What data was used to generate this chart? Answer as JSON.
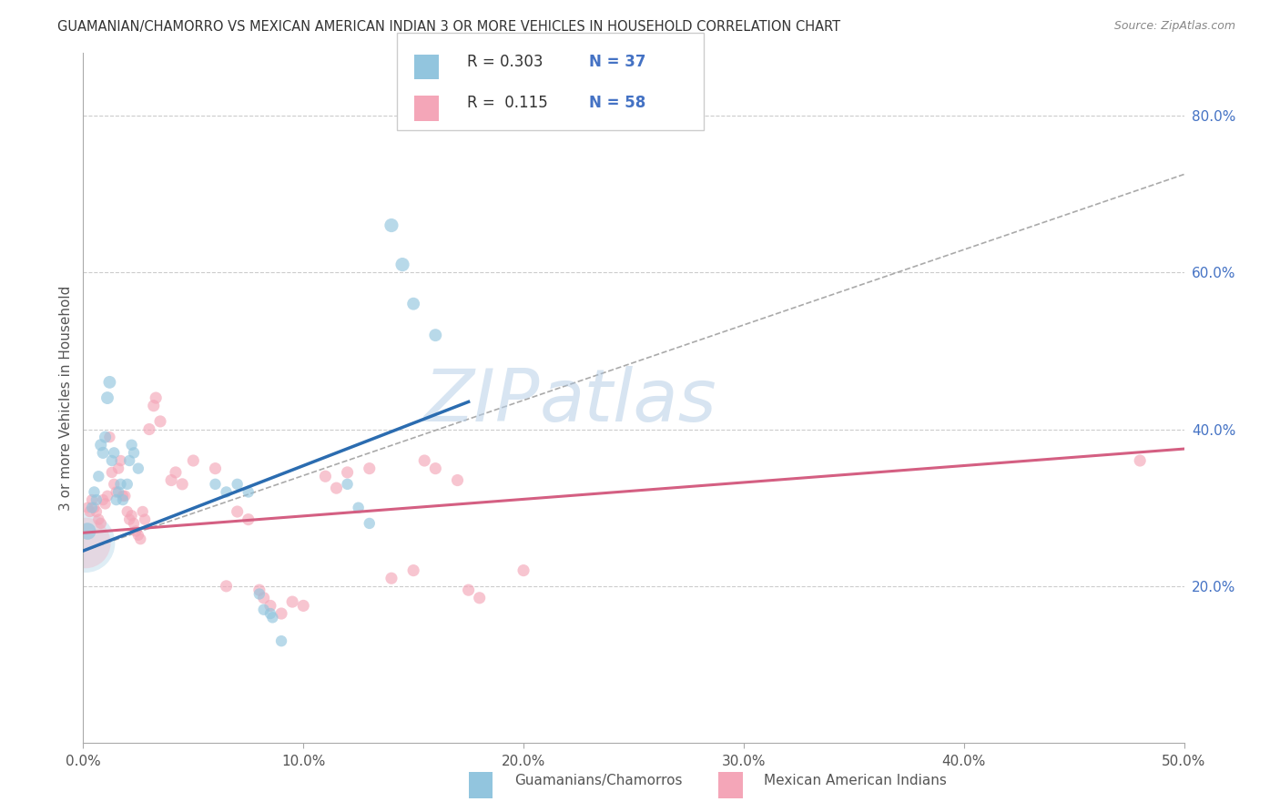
{
  "title": "GUAMANIAN/CHAMORRO VS MEXICAN AMERICAN INDIAN 3 OR MORE VEHICLES IN HOUSEHOLD CORRELATION CHART",
  "source": "Source: ZipAtlas.com",
  "ylabel": "3 or more Vehicles in Household",
  "xlim": [
    0,
    0.5
  ],
  "ylim": [
    0.0,
    0.88
  ],
  "xticks": [
    0.0,
    0.1,
    0.2,
    0.3,
    0.4,
    0.5
  ],
  "xtick_labels": [
    "0.0%",
    "10.0%",
    "20.0%",
    "30.0%",
    "40.0%",
    "50.0%"
  ],
  "yticks_right": [
    0.2,
    0.4,
    0.6,
    0.8
  ],
  "ytick_labels_right": [
    "20.0%",
    "40.0%",
    "60.0%",
    "80.0%"
  ],
  "grid_color": "#cccccc",
  "background_color": "#ffffff",
  "blue_color": "#92c5de",
  "pink_color": "#f4a6b8",
  "blue_line_color": "#2b6cb0",
  "pink_line_color": "#d45f82",
  "blue_scatter": [
    [
      0.002,
      0.27
    ],
    [
      0.004,
      0.3
    ],
    [
      0.005,
      0.32
    ],
    [
      0.006,
      0.31
    ],
    [
      0.007,
      0.34
    ],
    [
      0.008,
      0.38
    ],
    [
      0.009,
      0.37
    ],
    [
      0.01,
      0.39
    ],
    [
      0.011,
      0.44
    ],
    [
      0.012,
      0.46
    ],
    [
      0.013,
      0.36
    ],
    [
      0.014,
      0.37
    ],
    [
      0.015,
      0.31
    ],
    [
      0.016,
      0.32
    ],
    [
      0.017,
      0.33
    ],
    [
      0.018,
      0.31
    ],
    [
      0.02,
      0.33
    ],
    [
      0.021,
      0.36
    ],
    [
      0.022,
      0.38
    ],
    [
      0.023,
      0.37
    ],
    [
      0.025,
      0.35
    ],
    [
      0.06,
      0.33
    ],
    [
      0.065,
      0.32
    ],
    [
      0.07,
      0.33
    ],
    [
      0.075,
      0.32
    ],
    [
      0.08,
      0.19
    ],
    [
      0.082,
      0.17
    ],
    [
      0.085,
      0.165
    ],
    [
      0.086,
      0.16
    ],
    [
      0.09,
      0.13
    ],
    [
      0.12,
      0.33
    ],
    [
      0.125,
      0.3
    ],
    [
      0.13,
      0.28
    ],
    [
      0.14,
      0.66
    ],
    [
      0.145,
      0.61
    ],
    [
      0.15,
      0.56
    ],
    [
      0.16,
      0.52
    ]
  ],
  "blue_sizes": [
    180,
    80,
    80,
    80,
    80,
    90,
    90,
    90,
    100,
    100,
    80,
    80,
    80,
    80,
    80,
    80,
    80,
    80,
    80,
    80,
    80,
    80,
    80,
    80,
    80,
    80,
    80,
    80,
    80,
    80,
    80,
    80,
    80,
    120,
    120,
    100,
    100
  ],
  "pink_scatter": [
    [
      0.002,
      0.3
    ],
    [
      0.003,
      0.295
    ],
    [
      0.004,
      0.31
    ],
    [
      0.005,
      0.3
    ],
    [
      0.006,
      0.295
    ],
    [
      0.007,
      0.285
    ],
    [
      0.008,
      0.28
    ],
    [
      0.009,
      0.31
    ],
    [
      0.01,
      0.305
    ],
    [
      0.011,
      0.315
    ],
    [
      0.012,
      0.39
    ],
    [
      0.013,
      0.345
    ],
    [
      0.014,
      0.33
    ],
    [
      0.015,
      0.32
    ],
    [
      0.016,
      0.35
    ],
    [
      0.017,
      0.36
    ],
    [
      0.018,
      0.315
    ],
    [
      0.019,
      0.315
    ],
    [
      0.02,
      0.295
    ],
    [
      0.021,
      0.285
    ],
    [
      0.022,
      0.29
    ],
    [
      0.023,
      0.28
    ],
    [
      0.024,
      0.27
    ],
    [
      0.025,
      0.265
    ],
    [
      0.026,
      0.26
    ],
    [
      0.027,
      0.295
    ],
    [
      0.028,
      0.285
    ],
    [
      0.03,
      0.4
    ],
    [
      0.032,
      0.43
    ],
    [
      0.033,
      0.44
    ],
    [
      0.035,
      0.41
    ],
    [
      0.04,
      0.335
    ],
    [
      0.042,
      0.345
    ],
    [
      0.045,
      0.33
    ],
    [
      0.05,
      0.36
    ],
    [
      0.06,
      0.35
    ],
    [
      0.065,
      0.2
    ],
    [
      0.07,
      0.295
    ],
    [
      0.075,
      0.285
    ],
    [
      0.08,
      0.195
    ],
    [
      0.082,
      0.185
    ],
    [
      0.085,
      0.175
    ],
    [
      0.09,
      0.165
    ],
    [
      0.095,
      0.18
    ],
    [
      0.1,
      0.175
    ],
    [
      0.11,
      0.34
    ],
    [
      0.115,
      0.325
    ],
    [
      0.12,
      0.345
    ],
    [
      0.13,
      0.35
    ],
    [
      0.14,
      0.21
    ],
    [
      0.15,
      0.22
    ],
    [
      0.155,
      0.36
    ],
    [
      0.16,
      0.35
    ],
    [
      0.17,
      0.335
    ],
    [
      0.175,
      0.195
    ],
    [
      0.18,
      0.185
    ],
    [
      0.2,
      0.22
    ],
    [
      0.48,
      0.36
    ]
  ],
  "pink_sizes": [
    80,
    80,
    80,
    80,
    80,
    80,
    80,
    80,
    80,
    80,
    80,
    80,
    80,
    80,
    80,
    80,
    80,
    80,
    80,
    80,
    80,
    80,
    80,
    80,
    80,
    80,
    80,
    90,
    90,
    90,
    90,
    90,
    90,
    90,
    90,
    90,
    90,
    90,
    90,
    90,
    90,
    90,
    90,
    90,
    90,
    90,
    90,
    90,
    90,
    90,
    90,
    90,
    90,
    90,
    90,
    90,
    90,
    90
  ],
  "blue_trend_x": [
    0.0,
    0.175
  ],
  "blue_trend_y": [
    0.245,
    0.435
  ],
  "pink_trend_x": [
    0.0,
    0.5
  ],
  "pink_trend_y": [
    0.268,
    0.375
  ],
  "dashed_trend_x": [
    0.0,
    0.5
  ],
  "dashed_trend_y": [
    0.245,
    0.725
  ],
  "legend_items": [
    {
      "color": "#92c5de",
      "R": "R = 0.303",
      "N": "N = 37"
    },
    {
      "color": "#f4a6b8",
      "R": "R =  0.115",
      "N": "N = 58"
    }
  ],
  "bottom_legend": [
    {
      "color": "#92c5de",
      "label": "Guamanians/Chamorros"
    },
    {
      "color": "#f4a6b8",
      "label": "Mexican American Indians"
    }
  ]
}
